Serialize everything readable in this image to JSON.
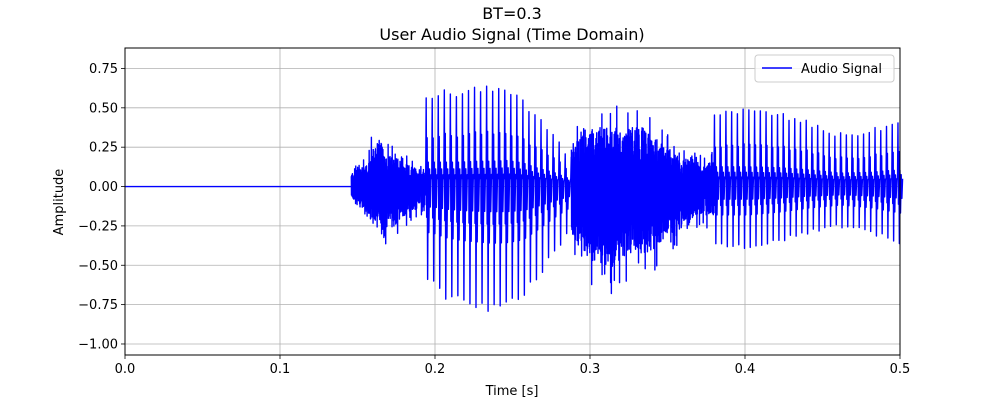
{
  "chart_data": {
    "type": "line",
    "title": "BT=0.3",
    "subtitle": "User Audio Signal (Time Domain)",
    "xlabel": "Time [s]",
    "ylabel": "Amplitude",
    "xlim": [
      0.0,
      0.5
    ],
    "ylim": [
      -1.07,
      0.88
    ],
    "xticks": [
      0.0,
      0.1,
      0.2,
      0.3,
      0.4,
      0.5
    ],
    "xtick_labels": [
      "0.0",
      "0.1",
      "0.2",
      "0.3",
      "0.4",
      "0.5"
    ],
    "yticks": [
      -1.0,
      -0.75,
      -0.5,
      -0.25,
      0.0,
      0.25,
      0.5,
      0.75
    ],
    "ytick_labels": [
      "−1.00",
      "−0.75",
      "−0.50",
      "−0.25",
      "0.00",
      "0.25",
      "0.50",
      "0.75"
    ],
    "grid": true,
    "legend_position": "top-right",
    "series": [
      {
        "name": "Audio Signal",
        "color": "#0000ff",
        "segments": [
          {
            "t_start": 0.0,
            "t_end": 0.146,
            "kind": "silence"
          },
          {
            "t_start": 0.146,
            "t_end": 0.194,
            "kind": "dense-burst",
            "envelope": [
              [
                0.146,
                0.12,
                -0.1
              ],
              [
                0.15,
                0.2,
                -0.15
              ],
              [
                0.156,
                0.22,
                -0.28
              ],
              [
                0.163,
                0.45,
                -0.36
              ],
              [
                0.17,
                0.28,
                -0.42
              ],
              [
                0.178,
                0.22,
                -0.3
              ],
              [
                0.185,
                0.18,
                -0.22
              ],
              [
                0.194,
                0.15,
                -0.18
              ]
            ]
          },
          {
            "t_start": 0.194,
            "t_end": 0.288,
            "kind": "voiced-pulses",
            "pulse_period": 0.0039,
            "envelope": [
              [
                0.196,
                0.62,
                -0.65
              ],
              [
                0.205,
                0.62,
                -0.72
              ],
              [
                0.215,
                0.62,
                -0.76
              ],
              [
                0.225,
                0.64,
                -0.78
              ],
              [
                0.235,
                0.64,
                -0.8
              ],
              [
                0.245,
                0.66,
                -0.79
              ],
              [
                0.255,
                0.6,
                -0.75
              ],
              [
                0.265,
                0.46,
                -0.6
              ],
              [
                0.275,
                0.36,
                -0.44
              ],
              [
                0.285,
                0.2,
                -0.3
              ]
            ]
          },
          {
            "t_start": 0.288,
            "t_end": 0.38,
            "kind": "mixed-dense",
            "envelope": [
              [
                0.29,
                0.4,
                -0.5
              ],
              [
                0.3,
                0.52,
                -0.68
              ],
              [
                0.31,
                0.55,
                -0.72
              ],
              [
                0.32,
                0.52,
                -0.68
              ],
              [
                0.33,
                0.58,
                -0.62
              ],
              [
                0.34,
                0.46,
                -0.6
              ],
              [
                0.35,
                0.36,
                -0.45
              ],
              [
                0.36,
                0.26,
                -0.34
              ],
              [
                0.37,
                0.2,
                -0.25
              ],
              [
                0.38,
                0.22,
                -0.28
              ]
            ]
          },
          {
            "t_start": 0.38,
            "t_end": 0.5,
            "kind": "voiced-pulses",
            "pulse_period": 0.0037,
            "envelope": [
              [
                0.382,
                0.5,
                -0.4
              ],
              [
                0.4,
                0.5,
                -0.4
              ],
              [
                0.42,
                0.48,
                -0.36
              ],
              [
                0.44,
                0.42,
                -0.3
              ],
              [
                0.46,
                0.34,
                -0.26
              ],
              [
                0.48,
                0.36,
                -0.3
              ],
              [
                0.49,
                0.4,
                -0.34
              ],
              [
                0.5,
                0.42,
                -0.38
              ]
            ]
          }
        ]
      }
    ]
  }
}
